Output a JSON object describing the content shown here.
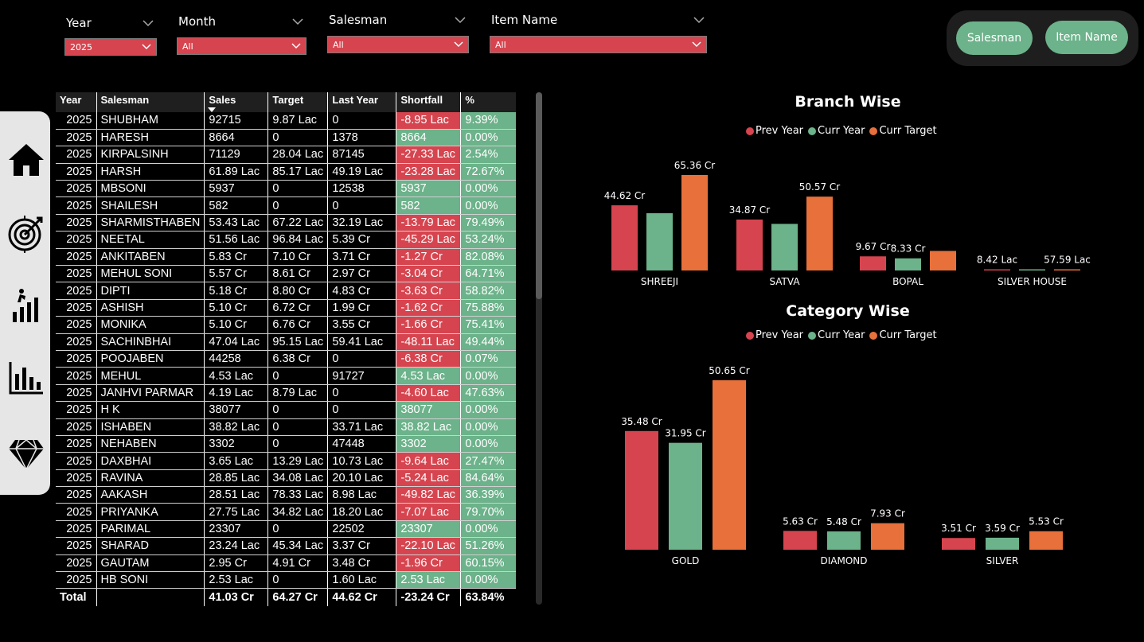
{
  "slicers": [
    {
      "label": "Year",
      "value": "2025"
    },
    {
      "label": "Month",
      "value": "All"
    },
    {
      "label": "Salesman",
      "value": "All"
    },
    {
      "label": "Item Name",
      "value": "All"
    }
  ],
  "nav_buttons": {
    "salesman": "Salesman",
    "item_name": "Item Name"
  },
  "sidebar_icons": [
    "home-icon",
    "target-icon",
    "growth-stairs-icon",
    "bar-chart-icon",
    "diamond-icon"
  ],
  "table": {
    "headers": [
      "Year",
      "Salesman",
      "Sales",
      "Target",
      "Last Year",
      "Shortfall",
      "%"
    ],
    "rows": [
      [
        "2025",
        "SHUBHAM",
        "92715",
        "9.87 Lac",
        "0",
        "-8.95 Lac",
        "9.39%"
      ],
      [
        "2025",
        "HARESH",
        "8664",
        "0",
        "1378",
        "8664",
        "0.00%"
      ],
      [
        "2025",
        "KIRPALSINH",
        "71129",
        "28.04 Lac",
        "87145",
        "-27.33 Lac",
        "2.54%"
      ],
      [
        "2025",
        "HARSH",
        "61.89 Lac",
        "85.17 Lac",
        "49.19 Lac",
        "-23.28 Lac",
        "72.67%"
      ],
      [
        "2025",
        "MBSONI",
        "5937",
        "0",
        "12538",
        "5937",
        "0.00%"
      ],
      [
        "2025",
        "SHAILESH",
        "582",
        "0",
        "0",
        "582",
        "0.00%"
      ],
      [
        "2025",
        "SHARMISTHABEN",
        "53.43 Lac",
        "67.22 Lac",
        "32.19 Lac",
        "-13.79 Lac",
        "79.49%"
      ],
      [
        "2025",
        "NEETAL",
        "51.56 Lac",
        "96.84 Lac",
        "5.39 Cr",
        "-45.29 Lac",
        "53.24%"
      ],
      [
        "2025",
        "ANKITABEN",
        "5.83 Cr",
        "7.10 Cr",
        "3.71 Cr",
        "-1.27 Cr",
        "82.08%"
      ],
      [
        "2025",
        "MEHUL SONI",
        "5.57 Cr",
        "8.61 Cr",
        "2.97 Cr",
        "-3.04 Cr",
        "64.71%"
      ],
      [
        "2025",
        "DIPTI",
        "5.18 Cr",
        "8.80 Cr",
        "4.83 Cr",
        "-3.63 Cr",
        "58.82%"
      ],
      [
        "2025",
        "ASHISH",
        "5.10 Cr",
        "6.72 Cr",
        "1.99 Cr",
        "-1.62 Cr",
        "75.88%"
      ],
      [
        "2025",
        "MONIKA",
        "5.10 Cr",
        "6.76 Cr",
        "3.55 Cr",
        "-1.66 Cr",
        "75.41%"
      ],
      [
        "2025",
        "SACHINBHAI",
        "47.04 Lac",
        "95.15 Lac",
        "59.41 Lac",
        "-48.11 Lac",
        "49.44%"
      ],
      [
        "2025",
        "POOJABEN",
        "44258",
        "6.38 Cr",
        "0",
        "-6.38 Cr",
        "0.07%"
      ],
      [
        "2025",
        "MEHUL",
        "4.53 Lac",
        "0",
        "91727",
        "4.53 Lac",
        "0.00%"
      ],
      [
        "2025",
        "JANHVI PARMAR",
        "4.19 Lac",
        "8.79 Lac",
        "0",
        "-4.60 Lac",
        "47.63%"
      ],
      [
        "2025",
        "H K",
        "38077",
        "0",
        "0",
        "38077",
        "0.00%"
      ],
      [
        "2025",
        "ISHABEN",
        "38.82 Lac",
        "0",
        "33.71 Lac",
        "38.82 Lac",
        "0.00%"
      ],
      [
        "2025",
        "NEHABEN",
        "3302",
        "0",
        "47448",
        "3302",
        "0.00%"
      ],
      [
        "2025",
        "DAXBHAI",
        "3.65 Lac",
        "13.29 Lac",
        "10.73 Lac",
        "-9.64 Lac",
        "27.47%"
      ],
      [
        "2025",
        "RAVINA",
        "28.85 Lac",
        "34.08 Lac",
        "20.10 Lac",
        "-5.24 Lac",
        "84.64%"
      ],
      [
        "2025",
        "AAKASH",
        "28.51 Lac",
        "78.33 Lac",
        "8.98 Lac",
        "-49.82 Lac",
        "36.39%"
      ],
      [
        "2025",
        "PRIYANKA",
        "27.75 Lac",
        "34.82 Lac",
        "18.20 Lac",
        "-7.07 Lac",
        "79.70%"
      ],
      [
        "2025",
        "PARIMAL",
        "23307",
        "0",
        "22502",
        "23307",
        "0.00%"
      ],
      [
        "2025",
        "SHARAD",
        "23.24 Lac",
        "45.34 Lac",
        "3.37 Cr",
        "-22.10 Lac",
        "51.26%"
      ],
      [
        "2025",
        "GAUTAM",
        "2.95 Cr",
        "4.91 Cr",
        "3.48 Cr",
        "-1.96 Cr",
        "60.15%"
      ],
      [
        "2025",
        "HB SONI",
        "2.53 Lac",
        "0",
        "1.60 Lac",
        "2.53 Lac",
        "0.00%"
      ]
    ],
    "total": [
      "Total",
      "",
      "41.03 Cr",
      "64.27 Cr",
      "44.62 Cr",
      "-23.24 Cr",
      "63.84%"
    ]
  },
  "colors": {
    "prev": "#d6454f",
    "curr": "#6cb28a",
    "target": "#e8703a",
    "slicer": "#d6454f"
  },
  "legend": [
    "Prev Year",
    "Curr Year",
    "Curr Target"
  ],
  "chart_data": [
    {
      "type": "bar",
      "title": "Branch Wise",
      "categories": [
        "SHREEJI",
        "SATVA",
        "BOPAL",
        "SILVER HOUSE"
      ],
      "series": [
        {
          "name": "Prev Year",
          "values": [
            44.62,
            34.87,
            9.67,
            0.0842
          ],
          "labels": [
            "44.62 Cr",
            "34.87 Cr",
            "9.67 Cr",
            "8.42 Lac"
          ]
        },
        {
          "name": "Curr Year",
          "values": [
            39.2,
            31.9,
            8.33,
            0.3
          ],
          "labels": [
            "",
            "",
            "8.33 Cr",
            ""
          ]
        },
        {
          "name": "Curr Target",
          "values": [
            65.36,
            50.57,
            13.4,
            0.5759
          ],
          "labels": [
            "65.36 Cr",
            "50.57 Cr",
            "",
            "57.59 Lac"
          ]
        }
      ]
    },
    {
      "type": "bar",
      "title": "Category Wise",
      "categories": [
        "GOLD",
        "DIAMOND",
        "SILVER"
      ],
      "series": [
        {
          "name": "Prev Year",
          "values": [
            35.48,
            5.63,
            3.51
          ],
          "labels": [
            "35.48 Cr",
            "5.63 Cr",
            "3.51 Cr"
          ]
        },
        {
          "name": "Curr Year",
          "values": [
            31.95,
            5.48,
            3.59
          ],
          "labels": [
            "31.95 Cr",
            "5.48 Cr",
            "3.59 Cr"
          ]
        },
        {
          "name": "Curr Target",
          "values": [
            50.65,
            7.93,
            5.53
          ],
          "labels": [
            "50.65 Cr",
            "7.93 Cr",
            "5.53 Cr"
          ]
        }
      ]
    }
  ]
}
